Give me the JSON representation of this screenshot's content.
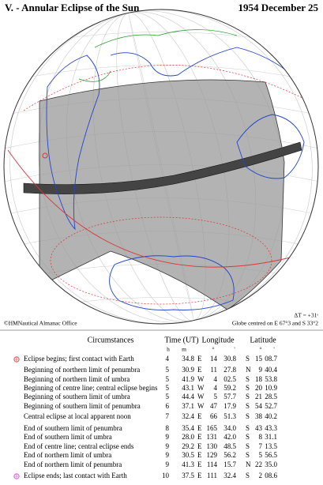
{
  "header": {
    "title": "V. - Annular Eclipse of the Sun",
    "date": "1954 December 25"
  },
  "notes": {
    "delta_t": "ΔT = +31ˢ",
    "copyright": "©HMNautical Almanac Office",
    "globe_centre": "Globe centred on E 67°3 and S 33°2"
  },
  "table": {
    "headers": [
      "Circumstances",
      "Time (UT)",
      "Longitude",
      "Latitude"
    ],
    "units": [
      "h",
      "m",
      "°",
      "'",
      "°",
      "'"
    ],
    "rows": [
      [
        "Eclipse begins; first contact with Earth",
        "4",
        "34.8",
        "E",
        "14",
        "30.8",
        "S",
        "15",
        "08.7"
      ],
      [
        "Beginning of northern limit of penumbra",
        "5",
        "30.9",
        "E",
        "11",
        "27.8",
        "N",
        "9",
        "40.4"
      ],
      [
        "Beginning of northern limit of umbra",
        "5",
        "41.9",
        "W",
        "4",
        "02.5",
        "S",
        "18",
        "53.8"
      ],
      [
        "Beginning of centre line; central eclipse begins",
        "5",
        "43.1",
        "W",
        "4",
        "59.2",
        "S",
        "20",
        "10.9"
      ],
      [
        "Beginning of southern limit of umbra",
        "5",
        "44.4",
        "W",
        "5",
        "57.7",
        "S",
        "21",
        "28.5"
      ],
      [
        "Beginning of southern limit of penumbra",
        "6",
        "37.1",
        "W",
        "47",
        "17.9",
        "S",
        "54",
        "52.7"
      ],
      [
        "Central eclipse at local apparent noon",
        "7",
        "32.4",
        "E",
        "66",
        "51.3",
        "S",
        "38",
        "40.2"
      ],
      [
        "End of southern limit of penumbra",
        "8",
        "35.4",
        "E",
        "165",
        "34.0",
        "S",
        "43",
        "43.3"
      ],
      [
        "End of southern limit of umbra",
        "9",
        "28.0",
        "E",
        "131",
        "42.0",
        "S",
        "8",
        "31.1"
      ],
      [
        "End of centre line; central eclipse ends",
        "9",
        "29.2",
        "E",
        "130",
        "48.5",
        "S",
        "7",
        "13.5"
      ],
      [
        "End of northern limit of umbra",
        "9",
        "30.5",
        "E",
        "129",
        "56.2",
        "S",
        "5",
        "56.5"
      ],
      [
        "End of northern limit of penumbra",
        "9",
        "41.3",
        "E",
        "114",
        "15.7",
        "N",
        "22",
        "35.0"
      ],
      [
        "Eclipse ends; last contact with Earth",
        "10",
        "37.5",
        "E",
        "111",
        "32.4",
        "S",
        "2",
        "08.6"
      ]
    ]
  }
}
